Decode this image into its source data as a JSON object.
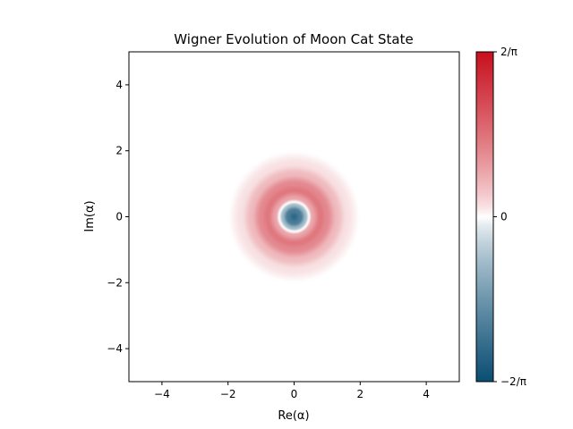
{
  "chart_data": {
    "type": "heatmap",
    "title": "Wigner Evolution of Moon Cat State",
    "xlabel": "Re(α)",
    "ylabel": "Im(α)",
    "xlim": [
      -5,
      5
    ],
    "ylim": [
      -5,
      5
    ],
    "x_ticks": [
      {
        "value": -4,
        "label": "−4"
      },
      {
        "value": -2,
        "label": "−2"
      },
      {
        "value": 0,
        "label": "0"
      },
      {
        "value": 2,
        "label": "2"
      },
      {
        "value": 4,
        "label": "4"
      }
    ],
    "y_ticks": [
      {
        "value": -4,
        "label": "−4"
      },
      {
        "value": -2,
        "label": "−2"
      },
      {
        "value": 0,
        "label": "0"
      },
      {
        "value": 2,
        "label": "2"
      },
      {
        "value": 4,
        "label": "4"
      }
    ],
    "colorbar": {
      "range": [
        -0.6366,
        0.6366
      ],
      "ticks": [
        {
          "value": 0.6366,
          "label": "2/π"
        },
        {
          "value": 0,
          "label": "0"
        },
        {
          "value": -0.6366,
          "label": "−2/π"
        }
      ],
      "colors": {
        "negative": "#0a4e73",
        "zero": "#ffffff",
        "positive": "#c8101e"
      }
    },
    "field": {
      "center": [
        0,
        0
      ],
      "description_of_values": "radially symmetric Wigner function",
      "radial_profile": [
        {
          "r": 0.0,
          "w": -0.52
        },
        {
          "r": 0.2,
          "w": -0.42
        },
        {
          "r": 0.35,
          "w": -0.18
        },
        {
          "r": 0.45,
          "w": 0.0
        },
        {
          "r": 0.55,
          "w": 0.17
        },
        {
          "r": 0.8,
          "w": 0.3
        },
        {
          "r": 1.0,
          "w": 0.25
        },
        {
          "r": 1.3,
          "w": 0.12
        },
        {
          "r": 1.6,
          "w": 0.04
        },
        {
          "r": 2.0,
          "w": 0.0
        },
        {
          "r": 5.0,
          "w": 0.0
        }
      ]
    }
  }
}
